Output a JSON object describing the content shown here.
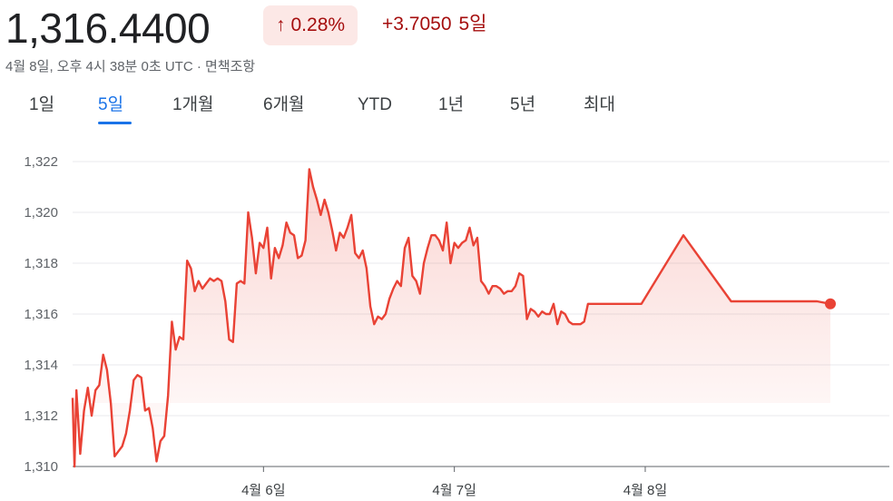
{
  "quote": {
    "price": "1,316.4400",
    "pct_change": "0.28%",
    "abs_change": "+3.7050",
    "period": "5일",
    "timestamp": "4월 8일, 오후 4시 38분 0초 UTC · 면책조항"
  },
  "tabs": [
    {
      "label": "1일"
    },
    {
      "label": "5일"
    },
    {
      "label": "1개월"
    },
    {
      "label": "6개월"
    },
    {
      "label": "YTD"
    },
    {
      "label": "1년"
    },
    {
      "label": "5년"
    },
    {
      "label": "최대"
    }
  ],
  "active_tab": "5일",
  "colors": {
    "line": "#e94235",
    "badge_bg": "#fce8e6",
    "negative_text": "#a50e0e",
    "active_tab": "#1a73e8"
  },
  "chart_data": {
    "type": "area",
    "ylim": [
      1310,
      1322
    ],
    "y_ticks": [
      "1,310",
      "1,312",
      "1,314",
      "1,316",
      "1,318",
      "1,320",
      "1,322"
    ],
    "x_ticks": [
      {
        "label": "4월 6일",
        "t": 1.0
      },
      {
        "label": "4월 7일",
        "t": 2.0
      },
      {
        "label": "4월 8일",
        "t": 3.0
      }
    ],
    "x_range": [
      0,
      3.97
    ],
    "grid": true,
    "series": [
      {
        "t": [
          0.0,
          0.01,
          0.02,
          0.04,
          0.06,
          0.08,
          0.1,
          0.12,
          0.14,
          0.16,
          0.18,
          0.2,
          0.22,
          0.24,
          0.26,
          0.28,
          0.3,
          0.32,
          0.34,
          0.36,
          0.38,
          0.4,
          0.42,
          0.44,
          0.46,
          0.48,
          0.5,
          0.52,
          0.54,
          0.56,
          0.58,
          0.6,
          0.62,
          0.64,
          0.66,
          0.68,
          0.7,
          0.72,
          0.74,
          0.76,
          0.78,
          0.8,
          0.82,
          0.84,
          0.86,
          0.88,
          0.9,
          0.92,
          0.94,
          0.96,
          0.98,
          1.0,
          1.02,
          1.04,
          1.06,
          1.08,
          1.1,
          1.12,
          1.14,
          1.16,
          1.18,
          1.2,
          1.22,
          1.24,
          1.26,
          1.28,
          1.3,
          1.32,
          1.34,
          1.36,
          1.38,
          1.4,
          1.42,
          1.44,
          1.46,
          1.48,
          1.5,
          1.52,
          1.54,
          1.56,
          1.58,
          1.6,
          1.62,
          1.64,
          1.66,
          1.68,
          1.7,
          1.72,
          1.74,
          1.76,
          1.78,
          1.8,
          1.82,
          1.84,
          1.86,
          1.88,
          1.9,
          1.92,
          1.94,
          1.96,
          1.98,
          2.0,
          2.02,
          2.04,
          2.06,
          2.08,
          2.1,
          2.12,
          2.14,
          2.16,
          2.18,
          2.2,
          2.22,
          2.24,
          2.26,
          2.28,
          2.3,
          2.32,
          2.34,
          2.36,
          2.38,
          2.4,
          2.42,
          2.44,
          2.46,
          2.48,
          2.5,
          2.52,
          2.54,
          2.56,
          2.58,
          2.6,
          2.62,
          2.64,
          2.66,
          2.68,
          2.7,
          2.72,
          2.74,
          2.76,
          2.78,
          2.8,
          2.82,
          2.84,
          2.86,
          2.88,
          2.92,
          2.98,
          3.2,
          3.45,
          3.51,
          3.6,
          3.7,
          3.8,
          3.9,
          3.97
        ],
        "values": [
          1312.7,
          1310.0,
          1313.0,
          1310.5,
          1312.2,
          1313.1,
          1312.0,
          1313.0,
          1313.2,
          1314.4,
          1313.8,
          1312.5,
          1310.4,
          1310.6,
          1310.8,
          1311.3,
          1312.2,
          1313.4,
          1313.6,
          1313.5,
          1312.2,
          1312.3,
          1311.5,
          1310.2,
          1311.0,
          1311.2,
          1312.8,
          1315.7,
          1314.6,
          1315.1,
          1315.0,
          1318.1,
          1317.8,
          1316.9,
          1317.3,
          1317.0,
          1317.2,
          1317.4,
          1317.3,
          1317.4,
          1317.3,
          1316.5,
          1315.0,
          1314.9,
          1317.2,
          1317.3,
          1317.2,
          1320.0,
          1319.0,
          1317.6,
          1318.8,
          1318.6,
          1319.4,
          1317.4,
          1318.6,
          1318.2,
          1318.7,
          1319.6,
          1319.2,
          1319.1,
          1318.2,
          1318.3,
          1318.9,
          1321.7,
          1321.0,
          1320.5,
          1319.9,
          1320.5,
          1320.0,
          1319.3,
          1318.5,
          1319.2,
          1319.0,
          1319.4,
          1319.9,
          1318.4,
          1318.2,
          1318.5,
          1317.8,
          1316.3,
          1315.6,
          1315.9,
          1315.8,
          1316.0,
          1316.6,
          1317.0,
          1317.3,
          1317.1,
          1318.6,
          1319.0,
          1317.5,
          1317.3,
          1316.8,
          1318.0,
          1318.6,
          1319.1,
          1319.1,
          1318.9,
          1318.5,
          1319.6,
          1318.0,
          1318.8,
          1318.6,
          1318.8,
          1318.9,
          1319.4,
          1318.7,
          1319.0,
          1317.3,
          1317.1,
          1316.8,
          1317.1,
          1317.1,
          1317.0,
          1316.8,
          1316.9,
          1316.9,
          1317.1,
          1317.6,
          1317.5,
          1315.8,
          1316.2,
          1316.1,
          1315.9,
          1316.1,
          1316.0,
          1316.0,
          1316.4,
          1315.6,
          1316.1,
          1316.0,
          1315.7,
          1315.6,
          1315.6,
          1315.6,
          1315.7,
          1316.4,
          1316.4,
          1316.4,
          1316.4,
          1316.4,
          1316.4,
          1316.4,
          1316.4,
          1316.4,
          1316.4,
          1316.4,
          1316.4,
          1319.1,
          1316.5,
          1316.5,
          1316.5,
          1316.5,
          1316.5,
          1316.5,
          1316.4
        ]
      }
    ]
  }
}
